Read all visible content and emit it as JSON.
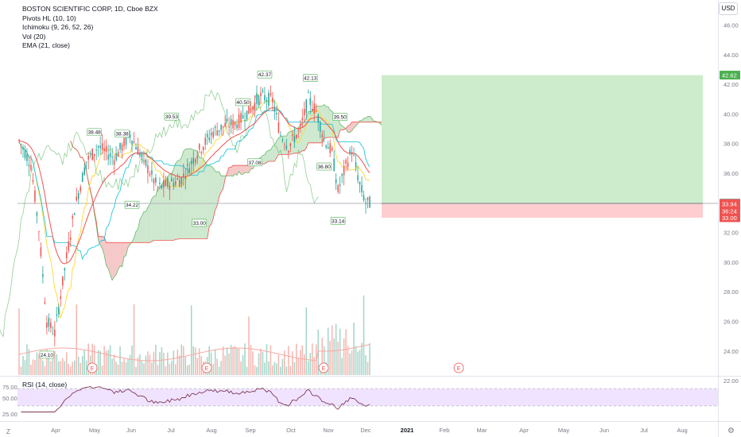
{
  "header": {
    "symbol_title": "BOSTON SCIENTIFIC CORP, 1D, Cboe BZX",
    "indicators": [
      "Pivots HL (10, 10)",
      "Ichimoku (9, 26, 52, 26)",
      "Vol (20)",
      "EMA (21, close)"
    ],
    "currency": "USD"
  },
  "rsi_pane": {
    "label": "RSI (14, close)",
    "ticks": [
      "75.00",
      "50.00",
      "25.00"
    ]
  },
  "footer": {
    "zoom_label": "Z",
    "settings_icon": "gear-icon"
  },
  "colors": {
    "up": "#26a69a",
    "down": "#ef5350",
    "ema": "#ef5350",
    "conversion": "#fdd835",
    "base": "#26c6da",
    "lagging": "#4caf50",
    "cloud_bull": "#a5d6a7",
    "cloud_bear": "#ef9a9a",
    "target_zone": "#cdeccb",
    "stop_zone": "#fdcdd0",
    "rsi_band": "#f0e3ff",
    "rsi_line": "#7e3a56"
  },
  "price_tags": [
    {
      "text": "42.62",
      "value": 42.62,
      "color": "#4caf50"
    },
    {
      "text": "33.96",
      "value": 33.96,
      "color": "#131722"
    },
    {
      "text": "33.94",
      "value": 33.94,
      "color": "#ef5350"
    },
    {
      "text": "36:24",
      "value": 33.46,
      "color": "#ef5350"
    },
    {
      "text": "33.00",
      "value": 33.0,
      "color": "#ef5350"
    }
  ],
  "chart_data": {
    "type": "candlestick",
    "y_axis_ticks": [
      "46.00",
      "44.00",
      "42.00",
      "40.00",
      "38.00",
      "36.00",
      "34.00",
      "32.00",
      "30.00",
      "28.00",
      "26.00",
      "24.00",
      "22.00"
    ],
    "ylim": [
      21.0,
      46.8
    ],
    "x_axis_labels": [
      "Apr",
      "May",
      "Jun",
      "Jul",
      "Aug",
      "Sep",
      "Oct",
      "Nov",
      "Dec",
      "2021",
      "Feb",
      "Mar",
      "Apr",
      "May",
      "Jun",
      "Jul",
      "Aug"
    ],
    "pivot_labels": [
      {
        "text": "42.37",
        "value": 42.37,
        "kind": "high"
      },
      {
        "text": "42.13",
        "value": 42.13,
        "kind": "high"
      },
      {
        "text": "40.50",
        "value": 40.5,
        "kind": "high"
      },
      {
        "text": "39.53",
        "value": 39.53,
        "kind": "high"
      },
      {
        "text": "39.50",
        "value": 39.5,
        "kind": "high"
      },
      {
        "text": "38.48",
        "value": 38.48,
        "kind": "high"
      },
      {
        "text": "38.38",
        "value": 38.38,
        "kind": "high"
      },
      {
        "text": "37.08",
        "value": 37.08,
        "kind": "low"
      },
      {
        "text": "36.80",
        "value": 36.8,
        "kind": "low"
      },
      {
        "text": "34.22",
        "value": 34.22,
        "kind": "low"
      },
      {
        "text": "33.14",
        "value": 33.14,
        "kind": "low"
      },
      {
        "text": "33.00",
        "value": 33.0,
        "kind": "low"
      },
      {
        "text": "24.10",
        "value": 24.1,
        "kind": "low"
      }
    ],
    "earnings_markers": [
      "E",
      "E",
      "E",
      "E"
    ],
    "position": {
      "entry": 33.96,
      "target": 42.62,
      "stop": 33.0
    },
    "rsi_range": [
      15,
      85
    ],
    "rsi_levels": [
      70,
      30
    ]
  }
}
